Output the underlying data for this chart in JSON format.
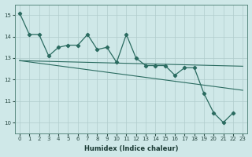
{
  "xlabel": "Humidex (Indice chaleur)",
  "ylabel": "",
  "background_color": "#cfe8e8",
  "grid_color": "#b0cccc",
  "line_color": "#2a6b60",
  "xlim": [
    -0.5,
    23.5
  ],
  "ylim": [
    9.5,
    15.5
  ],
  "yticks": [
    10,
    11,
    12,
    13,
    14,
    15
  ],
  "xticks": [
    0,
    1,
    2,
    3,
    4,
    5,
    6,
    7,
    8,
    9,
    10,
    11,
    12,
    13,
    14,
    15,
    16,
    17,
    18,
    19,
    20,
    21,
    22,
    23
  ],
  "series1_x": [
    0,
    1,
    2,
    3,
    4,
    5,
    6,
    7,
    8,
    9,
    10,
    11,
    12,
    13,
    14,
    15,
    16,
    17,
    18,
    19,
    20,
    21,
    22
  ],
  "series1_y": [
    15.1,
    14.1,
    14.1,
    13.1,
    13.5,
    13.6,
    13.6,
    14.1,
    13.4,
    13.5,
    12.8,
    14.1,
    13.0,
    12.65,
    12.65,
    12.65,
    12.2,
    12.55,
    12.55,
    11.35,
    10.45,
    10.0,
    10.45
  ],
  "series2_x": [
    0,
    23
  ],
  "series2_y": [
    12.88,
    12.62
  ],
  "series3_x": [
    0,
    23
  ],
  "series3_y": [
    12.88,
    11.5
  ],
  "xlabel_fontsize": 6.0,
  "tick_fontsize": 5.0
}
